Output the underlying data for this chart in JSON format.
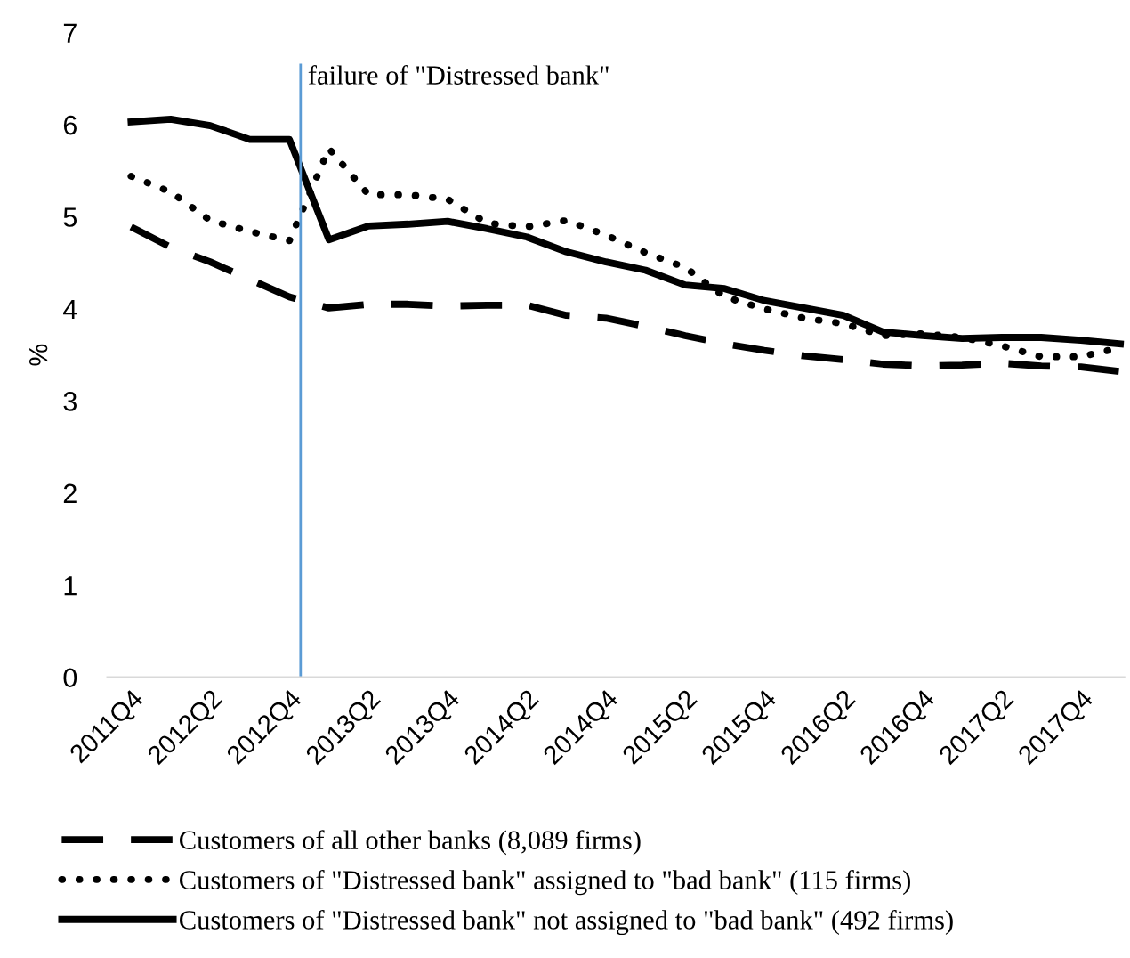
{
  "chart_data": {
    "type": "line",
    "ylabel": "%",
    "categories": [
      "2011Q4",
      null,
      "2012Q2",
      null,
      "2012Q4",
      null,
      "2013Q2",
      null,
      "2013Q4",
      null,
      "2014Q2",
      null,
      "2014Q4",
      null,
      "2015Q2",
      null,
      "2015Q4",
      null,
      "2016Q2",
      null,
      "2016Q4",
      null,
      "2017Q2",
      null,
      "2017Q4",
      null
    ],
    "series": [
      {
        "name": "Customers of all other banks (8,089 firms)",
        "color": "#000000",
        "line_style": "dashed",
        "values": [
          4.89,
          4.67,
          4.51,
          4.32,
          4.13,
          4.01,
          4.05,
          4.05,
          4.03,
          4.04,
          4.04,
          3.93,
          3.9,
          3.81,
          3.71,
          3.62,
          3.55,
          3.49,
          3.45,
          3.4,
          3.38,
          3.39,
          3.41,
          3.38,
          3.37,
          3.32
        ]
      },
      {
        "name": "Customers of \"Distressed bank\" assigned to \"bad bank\" (115 firms)",
        "color": "#000000",
        "line_style": "dotted",
        "values": [
          5.44,
          5.27,
          4.96,
          4.84,
          4.74,
          5.74,
          5.24,
          5.24,
          5.19,
          4.93,
          4.89,
          4.96,
          4.8,
          4.61,
          4.45,
          4.13,
          4.0,
          3.9,
          3.84,
          3.71,
          3.73,
          3.69,
          3.6,
          3.48,
          3.48,
          3.58
        ]
      },
      {
        "name": "Customers of \"Distressed bank\" not assigned to \"bad bank\" (492 firms)",
        "color": "#000000",
        "line_style": "solid",
        "values": [
          6.03,
          6.06,
          5.99,
          5.84,
          5.84,
          4.75,
          4.9,
          4.92,
          4.95,
          4.87,
          4.78,
          4.62,
          4.51,
          4.42,
          4.26,
          4.22,
          4.09,
          4.01,
          3.93,
          3.75,
          3.71,
          3.68,
          3.69,
          3.69,
          3.66,
          3.62
        ]
      }
    ],
    "ylim": [
      0,
      7
    ],
    "yticks": [
      0,
      1,
      2,
      3,
      4,
      5,
      6,
      7
    ],
    "annotations": [
      "failure of \"Distressed bank\""
    ],
    "grid": false,
    "legend": "bottom",
    "marker": "none"
  }
}
